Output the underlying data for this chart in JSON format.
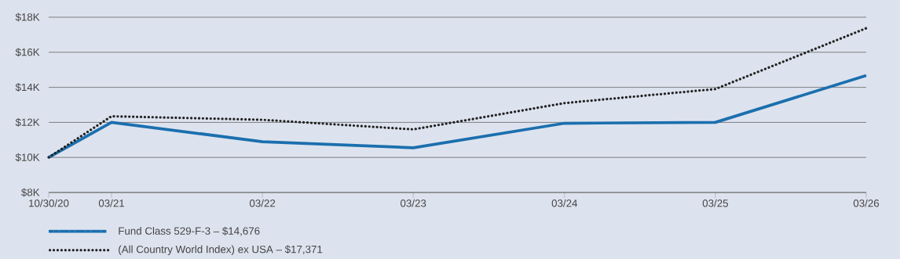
{
  "chart_data": {
    "type": "line",
    "x": [
      "2020-10-30",
      "2021-03-31",
      "2022-03-31",
      "2023-03-31",
      "2024-03-31",
      "2025-03-31",
      "2026-03-31"
    ],
    "series": [
      {
        "name": "Fund Class 529-F-3 – $14,676",
        "color": "#1b6fae",
        "line_style": "solid",
        "values": [
          10000,
          12000,
          10900,
          10550,
          11950,
          12000,
          14676
        ]
      },
      {
        "name": "(All Country World Index) ex USA – $17,371",
        "color": "#222222",
        "line_style": "dotted",
        "values": [
          10000,
          12350,
          12150,
          11600,
          13100,
          13900,
          17371
        ]
      }
    ],
    "xlim": [
      "2020-10-30",
      "2026-03-31"
    ],
    "xticks": [
      {
        "value": "2020-10-30",
        "label": "10/30/20"
      },
      {
        "value": "2021-03-31",
        "label": "03/21"
      },
      {
        "value": "2022-03-31",
        "label": "03/22"
      },
      {
        "value": "2023-03-31",
        "label": "03/23"
      },
      {
        "value": "2024-03-31",
        "label": "03/24"
      },
      {
        "value": "2025-03-31",
        "label": "03/25"
      },
      {
        "value": "2026-03-31",
        "label": "03/26"
      }
    ],
    "ylim": [
      8000,
      18000
    ],
    "yticks": [
      {
        "value": 8000,
        "label": "$8K"
      },
      {
        "value": 10000,
        "label": "$10K"
      },
      {
        "value": 12000,
        "label": "$12K"
      },
      {
        "value": 14000,
        "label": "$14K"
      },
      {
        "value": 16000,
        "label": "$16K"
      },
      {
        "value": 18000,
        "label": "$18K"
      }
    ],
    "grid": "y",
    "legend": "bottom",
    "marker": "none"
  }
}
